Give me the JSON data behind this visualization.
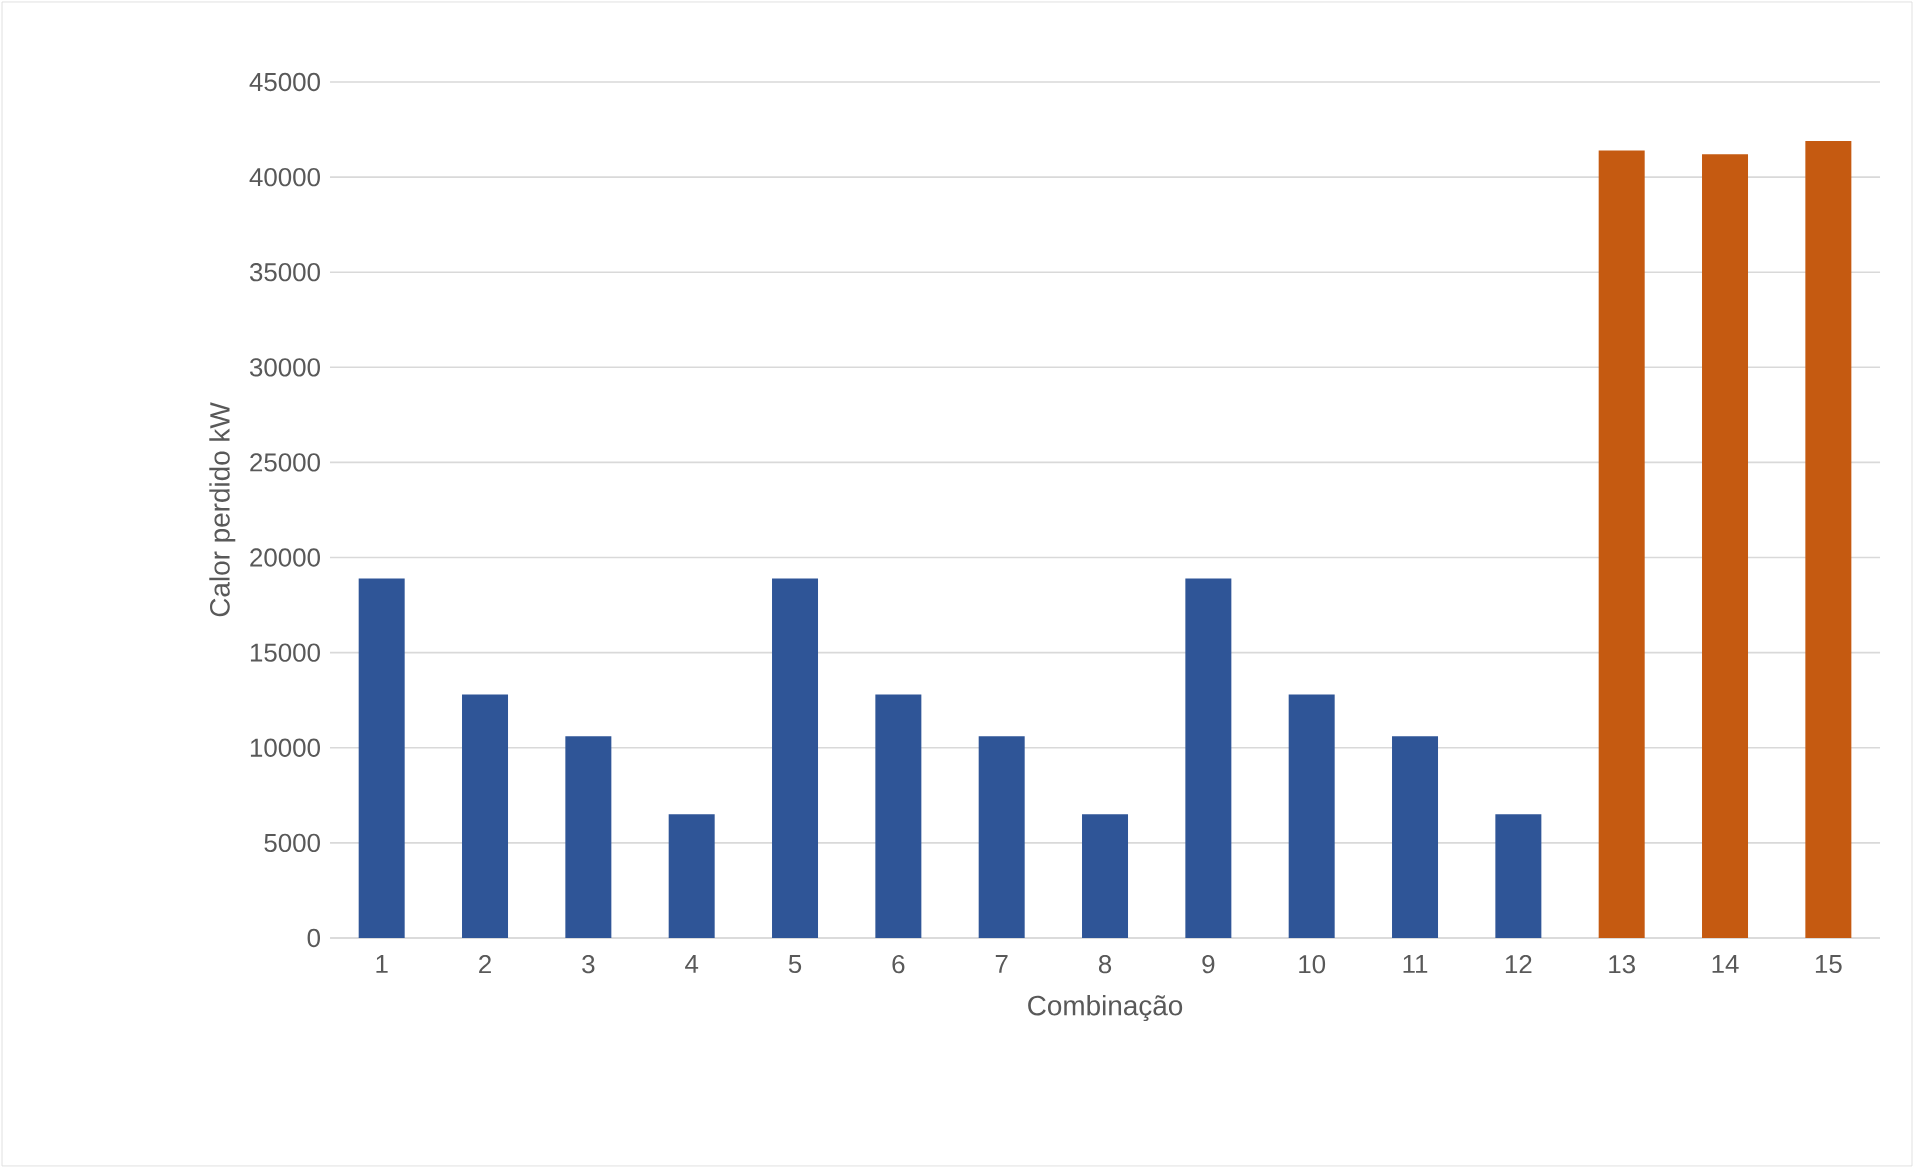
{
  "chart_data": {
    "type": "bar",
    "xlabel": "Combinação",
    "ylabel": "Calor perdido kW",
    "categories": [
      "1",
      "2",
      "3",
      "4",
      "5",
      "6",
      "7",
      "8",
      "9",
      "10",
      "11",
      "12",
      "13",
      "14",
      "15"
    ],
    "values": [
      18900,
      12800,
      10600,
      6500,
      18900,
      12800,
      10600,
      6500,
      18900,
      12800,
      10600,
      6500,
      41400,
      41200,
      41900
    ],
    "colors": [
      "#2f5597",
      "#2f5597",
      "#2f5597",
      "#2f5597",
      "#2f5597",
      "#2f5597",
      "#2f5597",
      "#2f5597",
      "#2f5597",
      "#2f5597",
      "#2f5597",
      "#2f5597",
      "#c55a11",
      "#c55a11",
      "#c55a11"
    ],
    "ylim": [
      0,
      45000
    ],
    "yticks": [
      0,
      5000,
      10000,
      15000,
      20000,
      25000,
      30000,
      35000,
      40000,
      45000
    ],
    "grid": "y"
  }
}
